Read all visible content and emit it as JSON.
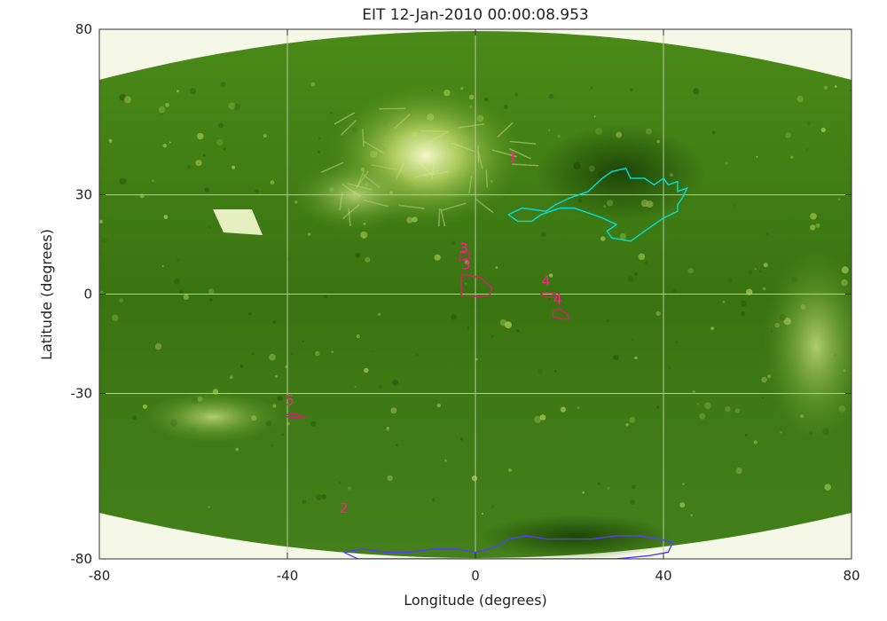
{
  "title": "EIT 12-Jan-2010 00:00:08.953",
  "chart_data": {
    "type": "map",
    "xlabel": "Longitude (degrees)",
    "ylabel": "Latitude (degrees)",
    "xlim": [
      -80,
      80
    ],
    "ylim": [
      -80,
      80
    ],
    "xticks": [
      -80,
      -40,
      0,
      40,
      80
    ],
    "yticks": [
      -80,
      -30,
      0,
      30,
      80
    ],
    "grid": true,
    "colors": {
      "disk": "#3e7a12",
      "disk_dark": "#1e4808",
      "disk_bright": "#e8f2a8",
      "off_disk": "#f5f8e6",
      "grid_line": "#b7c7a8",
      "label": "#ff1e8c",
      "contour_cyan": "#00e0e0",
      "contour_magenta": "#d8206e",
      "contour_blue": "#5a3cff"
    },
    "regions": [
      {
        "label": "1",
        "label_pos": [
          8,
          40
        ],
        "color": "cyan",
        "outline": [
          [
            7,
            24
          ],
          [
            10,
            26
          ],
          [
            15,
            25
          ],
          [
            17,
            27
          ],
          [
            20,
            29
          ],
          [
            24,
            31
          ],
          [
            27,
            35
          ],
          [
            29,
            37
          ],
          [
            32,
            38
          ],
          [
            33,
            35
          ],
          [
            36,
            35
          ],
          [
            38,
            33
          ],
          [
            40,
            35
          ],
          [
            41,
            33
          ],
          [
            43,
            34
          ],
          [
            43,
            31
          ],
          [
            45,
            32
          ],
          [
            44,
            29
          ],
          [
            43,
            27
          ],
          [
            43,
            25
          ],
          [
            40,
            23
          ],
          [
            38,
            21
          ],
          [
            35,
            18
          ],
          [
            33,
            16
          ],
          [
            29,
            17
          ],
          [
            28,
            19
          ],
          [
            30,
            21
          ],
          [
            27,
            23
          ],
          [
            25,
            24
          ],
          [
            23,
            25
          ],
          [
            21,
            26
          ],
          [
            18,
            26
          ],
          [
            16,
            25
          ],
          [
            14,
            24
          ],
          [
            12,
            22
          ],
          [
            9,
            22
          ],
          [
            7,
            24
          ]
        ]
      },
      {
        "label": "2",
        "label_pos": [
          -28,
          -66
        ],
        "color": "blue",
        "outline": [
          [
            -28,
            -78
          ],
          [
            -24,
            -77
          ],
          [
            -19,
            -78
          ],
          [
            -14,
            -78
          ],
          [
            -9,
            -77
          ],
          [
            -4,
            -77
          ],
          [
            0,
            -78
          ],
          [
            3,
            -77
          ],
          [
            5,
            -76
          ],
          [
            7,
            -74
          ],
          [
            11,
            -73
          ],
          [
            15,
            -74
          ],
          [
            20,
            -74
          ],
          [
            25,
            -74
          ],
          [
            30,
            -73
          ],
          [
            35,
            -73
          ],
          [
            39,
            -74
          ],
          [
            42,
            -75
          ],
          [
            41,
            -78
          ],
          [
            37,
            -79
          ],
          [
            30,
            -80
          ],
          [
            22,
            -80
          ],
          [
            14,
            -80
          ],
          [
            6,
            -80
          ],
          [
            -2,
            -80
          ],
          [
            -10,
            -80
          ],
          [
            -18,
            -80
          ],
          [
            -25,
            -80
          ],
          [
            -28,
            -78
          ]
        ]
      },
      {
        "label": "3",
        "label_pos": [
          -2.5,
          12.5
        ],
        "color": "magenta",
        "outline": [
          [
            -3.5,
            10
          ],
          [
            -3,
            13
          ],
          [
            -1.5,
            13
          ],
          [
            -1.3,
            11
          ],
          [
            -3.5,
            10
          ]
        ]
      },
      {
        "label": "3",
        "label_pos": [
          -2,
          7.5
        ],
        "color": "magenta",
        "outline": [
          [
            -3,
            6
          ],
          [
            -3,
            1
          ],
          [
            -3,
            -0.5
          ],
          [
            -1,
            -0.5
          ],
          [
            1,
            -0.8
          ],
          [
            3,
            -0.5
          ],
          [
            3.5,
            2
          ],
          [
            1,
            5
          ],
          [
            -1,
            5.5
          ],
          [
            -3,
            6
          ]
        ]
      },
      {
        "label": "4",
        "label_pos": [
          15,
          2.5
        ],
        "color": "magenta",
        "outline": [
          [
            14.5,
            0.5
          ],
          [
            15.5,
            0.5
          ],
          [
            17,
            0
          ],
          [
            17,
            -1
          ],
          [
            15,
            -1
          ],
          [
            14,
            0
          ],
          [
            14.5,
            0.5
          ]
        ]
      },
      {
        "label": "4",
        "label_pos": [
          17.5,
          -3
        ],
        "color": "magenta",
        "outline": [
          [
            16.5,
            -5
          ],
          [
            16.5,
            -7
          ],
          [
            18.5,
            -7.5
          ],
          [
            20,
            -7.5
          ],
          [
            19.5,
            -6
          ],
          [
            18,
            -4.5
          ],
          [
            16.5,
            -5
          ]
        ]
      },
      {
        "label": "5",
        "label_pos": [
          -39.5,
          -33.5
        ],
        "color": "magenta",
        "outline": [
          [
            -40.5,
            -36.5
          ],
          [
            -38.5,
            -36
          ],
          [
            -36,
            -37.5
          ],
          [
            -38,
            -37.3
          ],
          [
            -40.5,
            -37
          ]
        ]
      }
    ]
  }
}
